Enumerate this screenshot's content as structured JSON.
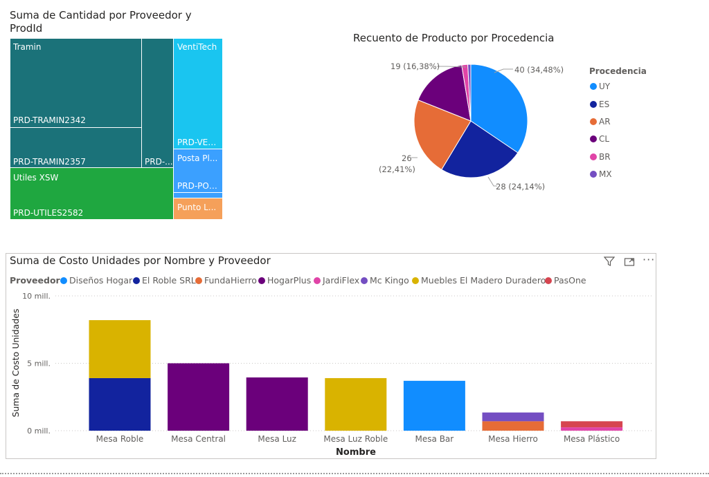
{
  "treemap": {
    "title_line1": "Suma de Cantidad por Proveedor y",
    "title_line2": "ProdId",
    "groups": [
      {
        "name": "Tramin",
        "color": "#1b7279",
        "products": [
          "PRD-TRAMIN2342",
          "PRD-TRAMIN2357",
          "PRD-..."
        ]
      },
      {
        "name": "VentiTech",
        "color": "#1ac5f0",
        "products": [
          "PRD-VEN..."
        ]
      },
      {
        "name": "Utiles XSW",
        "color": "#1fa740",
        "products": [
          "PRD-UTILES2582"
        ]
      },
      {
        "name": "Posta Pl...",
        "color": "#3ba0ff",
        "products": [
          "PRD-POS..."
        ]
      },
      {
        "name": "Punto L...",
        "color": "#f5a05a",
        "products": []
      }
    ]
  },
  "pie": {
    "title": "Recuento de Producto por Procedencia",
    "legend_title": "Procedencia",
    "chart_data": {
      "type": "pie",
      "labels": [
        "UY",
        "ES",
        "AR",
        "CL",
        "BR",
        "MX"
      ],
      "values": [
        40,
        28,
        26,
        19,
        2,
        1
      ],
      "colors": [
        "#118dff",
        "#12239e",
        "#e66c37",
        "#6b007b",
        "#e044a7",
        "#744ec2"
      ],
      "data_labels": [
        {
          "slice": "UY",
          "text": "40 (34,48%)"
        },
        {
          "slice": "ES",
          "text": "28 (24,14%)"
        },
        {
          "slice": "AR",
          "text_line1": "26",
          "text_line2": "(22,41%)"
        },
        {
          "slice": "CL",
          "text": "19 (16,38%)"
        }
      ]
    }
  },
  "bars": {
    "title": "Suma de Costo Unidades por Nombre y Proveedor",
    "legend_title": "Proveedor",
    "icons": [
      "filter-icon",
      "focus-mode-icon",
      "more-options-icon"
    ],
    "chart_data": {
      "type": "bar",
      "stacked": true,
      "categories": [
        "Mesa Roble",
        "Mesa Central",
        "Mesa Luz",
        "Mesa Luz Roble",
        "Mesa Bar",
        "Mesa Hierro",
        "Mesa Plástico"
      ],
      "xlabel": "Nombre",
      "ylabel": "Suma de Costo Unidades",
      "ylim": [
        0,
        10000000
      ],
      "yticks": [
        {
          "value": 0,
          "label": "0 mill."
        },
        {
          "value": 5000000,
          "label": "5 mill."
        },
        {
          "value": 10000000,
          "label": "10 mill."
        }
      ],
      "grid": true,
      "series": [
        {
          "name": "Diseños Hogar",
          "color": "#118dff",
          "values": [
            0,
            0,
            0,
            0,
            3700000,
            0,
            0
          ]
        },
        {
          "name": "El Roble SRL",
          "color": "#12239e",
          "values": [
            3900000,
            0,
            0,
            0,
            0,
            0,
            0
          ]
        },
        {
          "name": "FundaHierro",
          "color": "#e66c37",
          "values": [
            0,
            0,
            0,
            0,
            0,
            700000,
            0
          ]
        },
        {
          "name": "HogarPlus",
          "color": "#6b007b",
          "values": [
            0,
            5000000,
            3950000,
            0,
            0,
            0,
            0
          ]
        },
        {
          "name": "JardiFlex",
          "color": "#e044a7",
          "values": [
            0,
            0,
            0,
            0,
            0,
            0,
            250000
          ]
        },
        {
          "name": "Mc Kingo",
          "color": "#744ec2",
          "values": [
            0,
            0,
            0,
            0,
            0,
            650000,
            0
          ]
        },
        {
          "name": "Muebles El Madero Duradero",
          "color": "#d9b300",
          "values": [
            4300000,
            0,
            0,
            3900000,
            0,
            0,
            0
          ]
        },
        {
          "name": "PasOne",
          "color": "#d64550",
          "values": [
            0,
            0,
            0,
            0,
            0,
            0,
            450000
          ]
        }
      ]
    }
  }
}
